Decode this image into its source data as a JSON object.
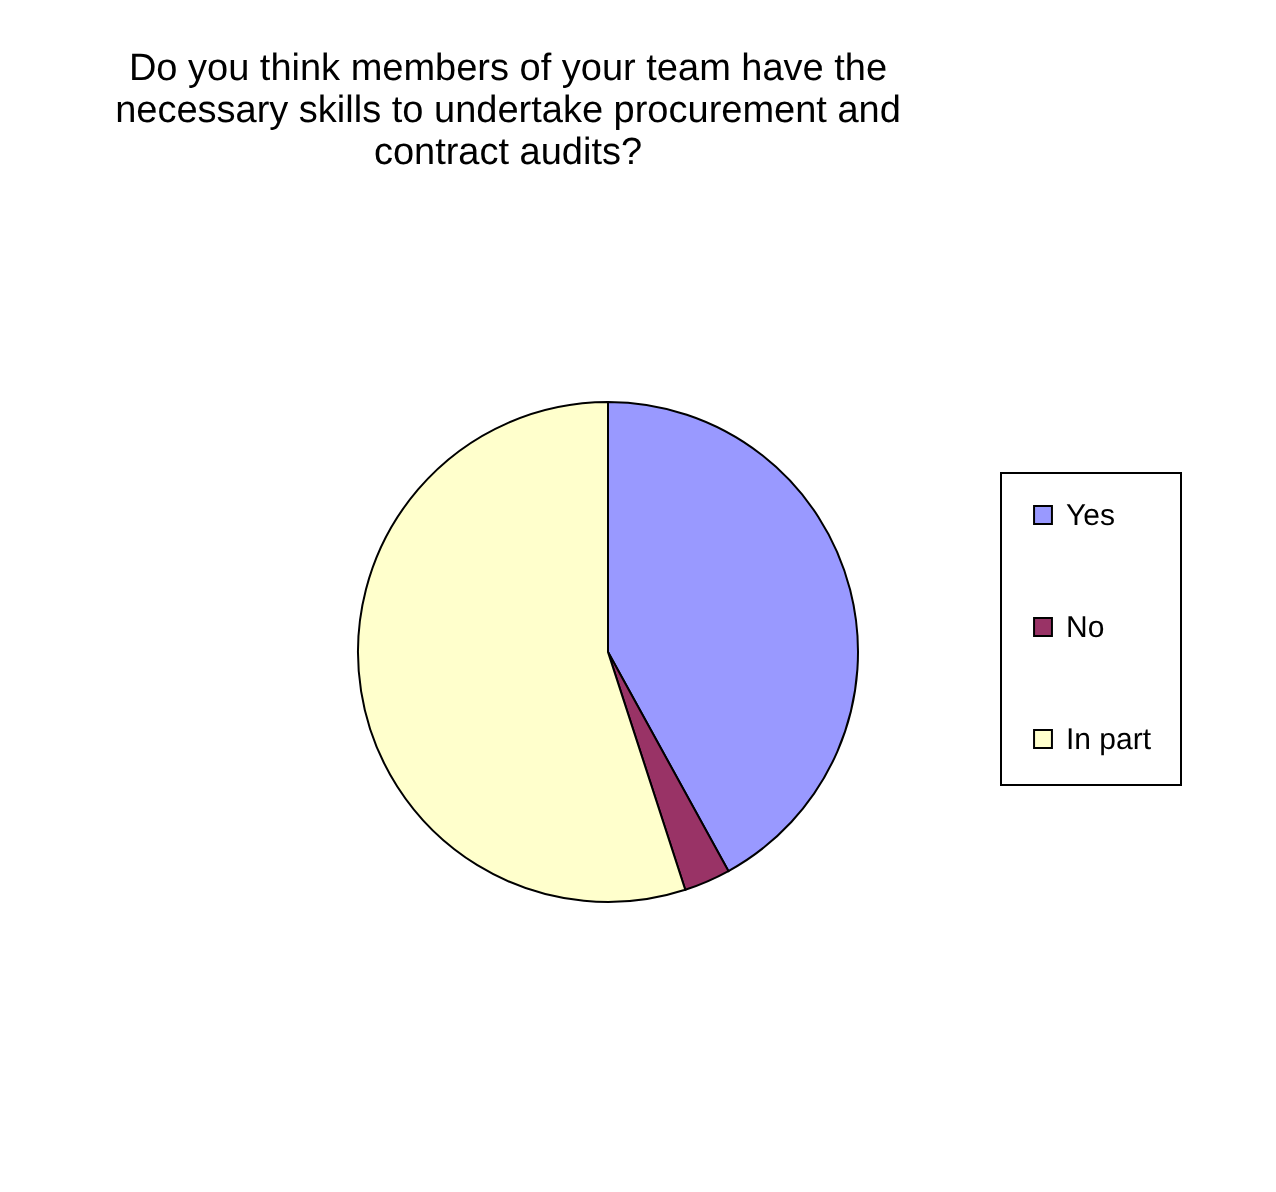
{
  "chart_data": {
    "type": "pie",
    "title": "Do you think members of your team have the necessary skills to undertake procurement and contract audits?",
    "categories": [
      "Yes",
      "No",
      "In part"
    ],
    "values": [
      42,
      3,
      55
    ],
    "colors": [
      "#9999ff",
      "#993366",
      "#ffffcc"
    ],
    "legend": "right"
  }
}
